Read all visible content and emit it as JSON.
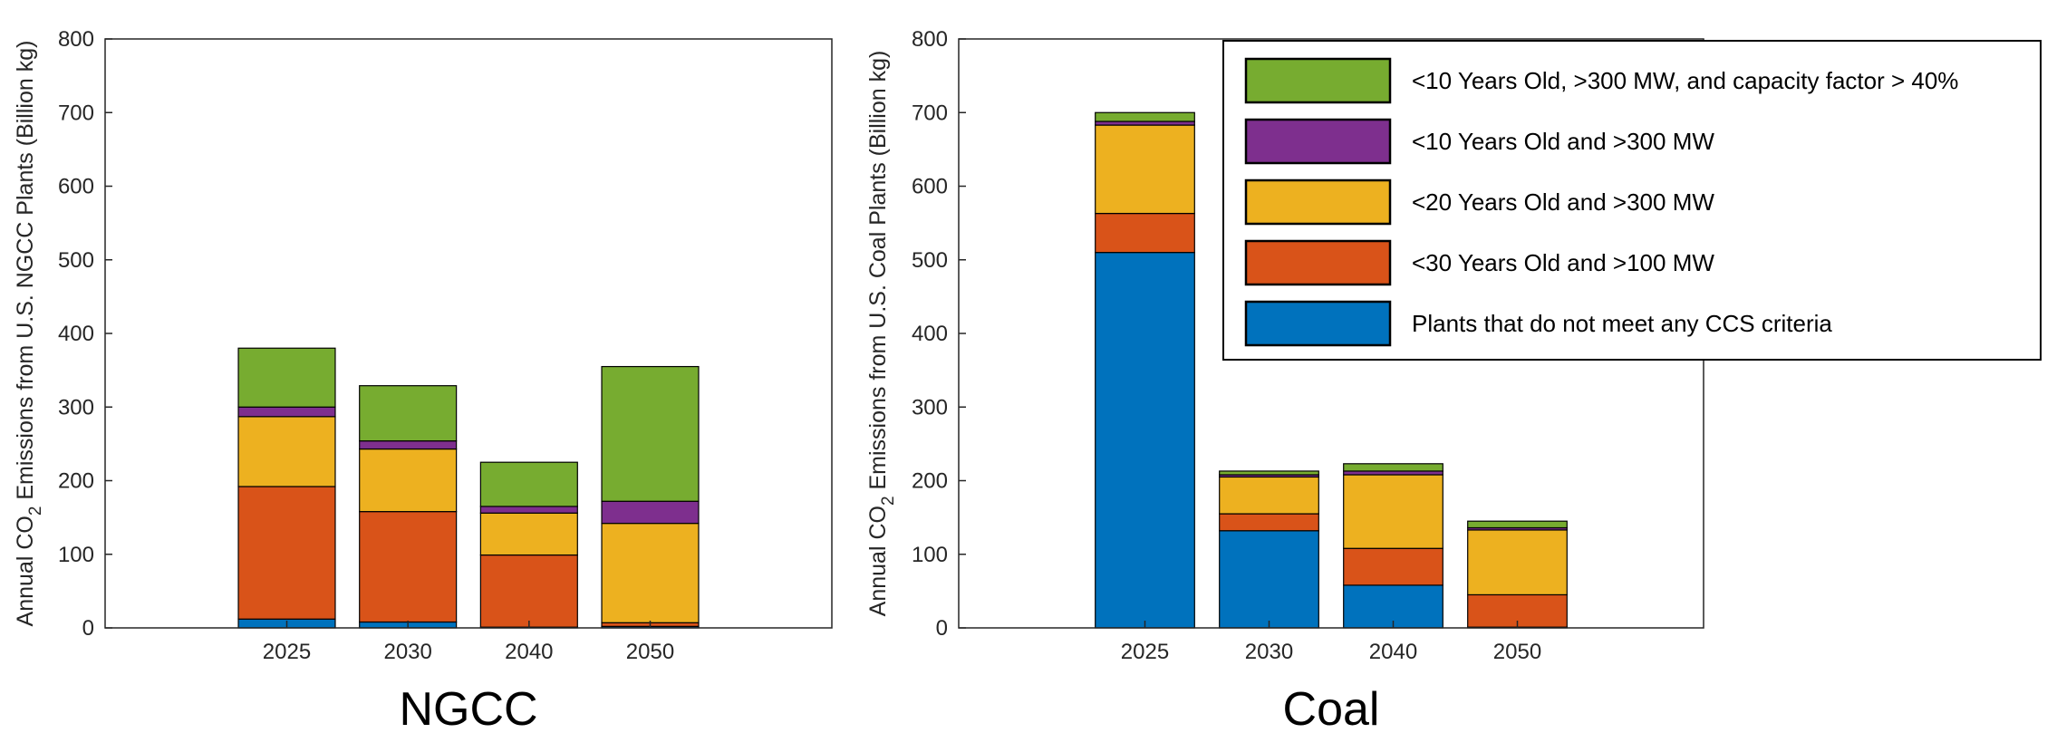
{
  "legend": [
    {
      "label": "<10 Years Old, >300 MW, and capacity factor > 40%",
      "color": "#77ac30"
    },
    {
      "label": "<10 Years Old and >300 MW",
      "color": "#7e2f8e"
    },
    {
      "label": "<20 Years Old and >300 MW",
      "color": "#edb120"
    },
    {
      "label": "<30 Years Old and >100 MW",
      "color": "#d95319"
    },
    {
      "label": "Plants that do not meet any CCS criteria",
      "color": "#0072bd"
    }
  ],
  "chart_data": [
    {
      "type": "bar",
      "stacked": true,
      "title": "NGCC",
      "ylabel_parts": [
        "Annual CO",
        "2",
        " Emissions from U.S. NGCC Plants (Billion kg)"
      ],
      "ylim": [
        0,
        800
      ],
      "yticks": [
        "0",
        "100",
        "200",
        "300",
        "400",
        "500",
        "600",
        "700",
        "800"
      ],
      "categories": [
        "2025",
        "2030",
        "2040",
        "2050"
      ],
      "series": [
        {
          "name": "Plants that do not meet any CCS criteria",
          "values": [
            12,
            8,
            1,
            2
          ]
        },
        {
          "name": "<30 Years Old and >100 MW",
          "values": [
            180,
            150,
            98,
            5
          ]
        },
        {
          "name": "<20 Years Old and >300 MW",
          "values": [
            95,
            85,
            57,
            135
          ]
        },
        {
          "name": "<10 Years Old and >300 MW",
          "values": [
            13,
            11,
            9,
            30
          ]
        },
        {
          "name": "<10 Years Old, >300 MW, and capacity factor > 40%",
          "values": [
            80,
            75,
            60,
            183
          ]
        }
      ]
    },
    {
      "type": "bar",
      "stacked": true,
      "title": "Coal",
      "ylabel_parts": [
        "Annual CO",
        "2",
        " Emissions from U.S. Coal Plants (Billion kg)"
      ],
      "ylim": [
        0,
        800
      ],
      "yticks": [
        "0",
        "100",
        "200",
        "300",
        "400",
        "500",
        "600",
        "700",
        "800"
      ],
      "categories": [
        "2025",
        "2030",
        "2040",
        "2050"
      ],
      "series": [
        {
          "name": "Plants that do not meet any CCS criteria",
          "values": [
            510,
            132,
            58,
            1
          ]
        },
        {
          "name": "<30 Years Old and >100 MW",
          "values": [
            53,
            23,
            50,
            44
          ]
        },
        {
          "name": "<20 Years Old and >300 MW",
          "values": [
            120,
            50,
            100,
            88
          ]
        },
        {
          "name": "<10 Years Old and >300 MW",
          "values": [
            5,
            3,
            5,
            3
          ]
        },
        {
          "name": "<10 Years Old, >300 MW, and capacity factor > 40%",
          "values": [
            12,
            5,
            10,
            9
          ]
        }
      ]
    }
  ]
}
